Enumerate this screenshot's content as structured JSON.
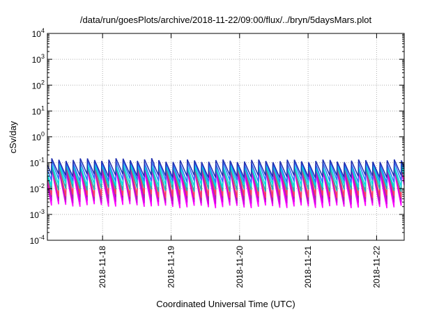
{
  "chart_data": {
    "type": "line",
    "title": "/data/run/goesPlots/archive/2018-11-22/09:00/flux/../bryn/5daysMars.plot",
    "xlabel": "Coordinated Universal Time (UTC)",
    "ylabel": "cSv/day",
    "x_range": [
      "2018-11-17T04:40",
      "2018-11-22T09:40"
    ],
    "x_ticks": [
      "2018-11-18",
      "2018-11-19",
      "2018-11-20",
      "2018-11-21",
      "2018-11-22"
    ],
    "y_scale": "log",
    "ylim": [
      0.0001,
      10000
    ],
    "y_ticks": [
      {
        "base": "10",
        "exp": "-4"
      },
      {
        "base": "10",
        "exp": "-3"
      },
      {
        "base": "10",
        "exp": "-2"
      },
      {
        "base": "10",
        "exp": "-1"
      },
      {
        "base": "10",
        "exp": "0"
      },
      {
        "base": "10",
        "exp": "1"
      },
      {
        "base": "10",
        "exp": "2"
      },
      {
        "base": "10",
        "exp": "3"
      },
      {
        "base": "10",
        "exp": "4"
      }
    ],
    "grid": true,
    "cycle_hours": 2.5,
    "series": [
      {
        "color": "#ff00ff",
        "peak": 0.045,
        "trough": 0.0018
      },
      {
        "color": "#d000e0",
        "peak": 0.055,
        "trough": 0.0025
      },
      {
        "color": "#a030a0",
        "peak": 0.07,
        "trough": 0.0035
      },
      {
        "color": "#ff4060",
        "peak": 0.085,
        "trough": 0.0045
      },
      {
        "color": "#20b0b0",
        "peak": 0.07,
        "trough": 0.008
      },
      {
        "color": "#00e0e0",
        "peak": 0.08,
        "trough": 0.012
      },
      {
        "color": "#3070ff",
        "peak": 0.1,
        "trough": 0.018
      },
      {
        "color": "#2030b0",
        "peak": 0.12,
        "trough": 0.028
      }
    ]
  }
}
